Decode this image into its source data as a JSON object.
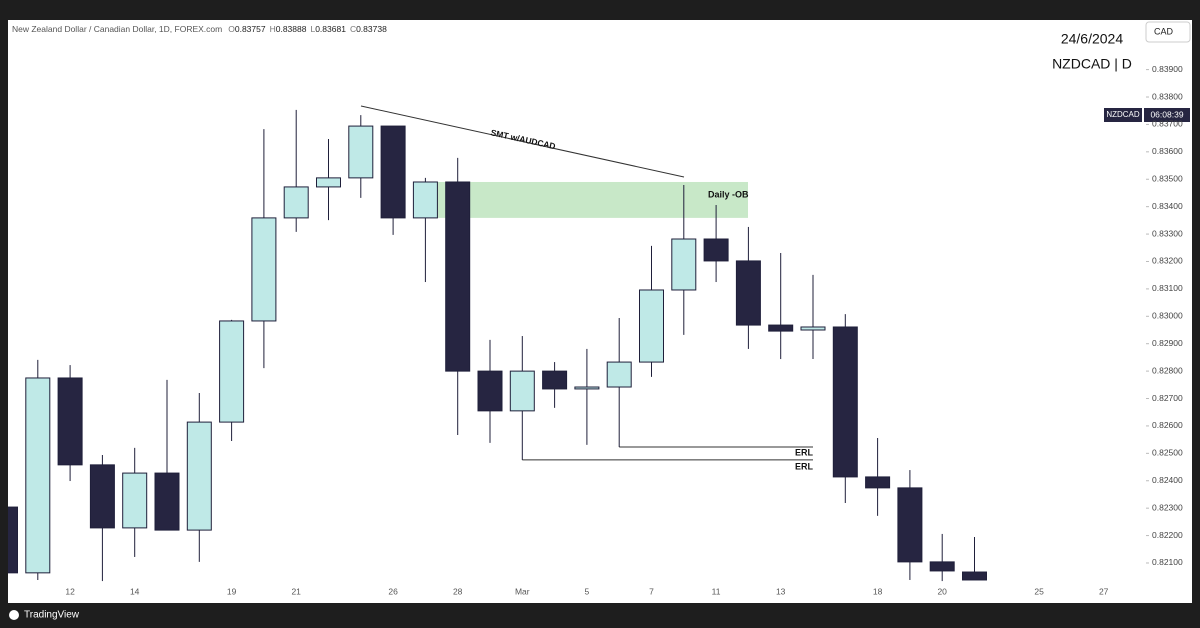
{
  "chart_data": {
    "type": "candlestick",
    "title": "New Zealand Dollar / Canadian Dollar, 1D, FOREX.com",
    "ohlc_header": [
      {
        "key": "O",
        "value": "0.83757"
      },
      {
        "key": "H",
        "value": "0.83888"
      },
      {
        "key": "L",
        "value": "0.83681"
      },
      {
        "key": "C",
        "value": "0.83738"
      }
    ],
    "date_label": "24/6/2024",
    "symbol_label": "NZDCAD | D",
    "currency": "CAD",
    "last_price_symbol": "NZDCAD",
    "countdown": "06:08:39",
    "brand": "TradingView",
    "categories": [
      null,
      null,
      "12",
      null,
      "14",
      null,
      null,
      "19",
      null,
      "21",
      null,
      null,
      "26",
      null,
      "28",
      null,
      "Mar",
      null,
      "5",
      null,
      "7",
      null,
      "11",
      null,
      "13",
      null,
      null,
      "18",
      null,
      "20",
      null,
      null,
      "25",
      null,
      "27"
    ],
    "open": [
      0.82304,
      0.82064,
      0.82775,
      0.82458,
      0.82228,
      0.82428,
      0.8222,
      0.82614,
      0.82983,
      0.83359,
      0.83472,
      0.83505,
      0.83694,
      0.83359,
      0.8349,
      0.828,
      0.82655,
      0.828,
      0.82735,
      0.82742,
      0.82833,
      0.83096,
      0.83282,
      0.83202,
      0.82968,
      0.8295,
      0.82961,
      0.82414,
      0.82374,
      0.82104,
      0.82067,
      null,
      null,
      null,
      null
    ],
    "high": [
      0.82304,
      0.82841,
      0.82822,
      0.82494,
      0.8252,
      0.82768,
      0.8272,
      0.82987,
      0.83683,
      0.83753,
      0.83647,
      0.83734,
      0.83694,
      0.83505,
      0.83578,
      0.82914,
      0.82928,
      0.82833,
      0.82881,
      0.82994,
      0.83257,
      0.83479,
      0.83406,
      0.83326,
      0.83231,
      0.83151,
      0.83008,
      0.82556,
      0.82439,
      0.82206,
      0.82195,
      null,
      null,
      null,
      null
    ],
    "low": [
      0.82064,
      0.82038,
      0.82399,
      0.82034,
      0.82122,
      0.8222,
      0.82104,
      0.82545,
      0.82811,
      0.83308,
      0.83351,
      0.83432,
      0.83297,
      0.83125,
      0.82567,
      0.82538,
      0.82476,
      0.82666,
      0.82531,
      0.82523,
      0.82779,
      0.82932,
      0.83125,
      0.82881,
      0.82844,
      0.82844,
      0.82319,
      0.82272,
      0.82038,
      0.82034,
      0.82038,
      null,
      null,
      null,
      null
    ],
    "close": [
      0.82064,
      0.82775,
      0.82458,
      0.82228,
      0.82428,
      0.8222,
      0.82614,
      0.82983,
      0.83359,
      0.83472,
      0.83505,
      0.83694,
      0.83359,
      0.8349,
      0.828,
      0.82655,
      0.828,
      0.82735,
      0.82742,
      0.82833,
      0.83096,
      0.83282,
      0.83202,
      0.82968,
      0.82946,
      0.82961,
      0.82414,
      0.82374,
      0.82104,
      0.82071,
      0.82038,
      null,
      null,
      null,
      null
    ],
    "up_color": "#bfe9e7",
    "down_color": "#262541",
    "wick_color": "#1f1f3a",
    "ylim": [
      0.81954,
      0.84081
    ],
    "yticks": [
      {
        "value": 0.821,
        "label": "0.82100"
      },
      {
        "value": 0.822,
        "label": "0.82200"
      },
      {
        "value": 0.823,
        "label": "0.82300"
      },
      {
        "value": 0.824,
        "label": "0.82400"
      },
      {
        "value": 0.825,
        "label": "0.82500"
      },
      {
        "value": 0.826,
        "label": "0.82600"
      },
      {
        "value": 0.827,
        "label": "0.82700"
      },
      {
        "value": 0.828,
        "label": "0.82800"
      },
      {
        "value": 0.829,
        "label": "0.82900"
      },
      {
        "value": 0.83,
        "label": "0.83000"
      },
      {
        "value": 0.831,
        "label": "0.83100"
      },
      {
        "value": 0.832,
        "label": "0.83200"
      },
      {
        "value": 0.833,
        "label": "0.83300"
      },
      {
        "value": 0.834,
        "label": "0.83400"
      },
      {
        "value": 0.835,
        "label": "0.83500"
      },
      {
        "value": 0.836,
        "label": "0.83600"
      },
      {
        "value": 0.837,
        "label": "0.83700"
      },
      {
        "value": 0.838,
        "label": "0.83800"
      },
      {
        "value": 0.839,
        "label": "0.83900"
      }
    ],
    "ob_label": "Daily -OB",
    "smt_label": "SMT w/AUDCAD",
    "erl_labels": [
      "ERL",
      "ERL"
    ]
  }
}
